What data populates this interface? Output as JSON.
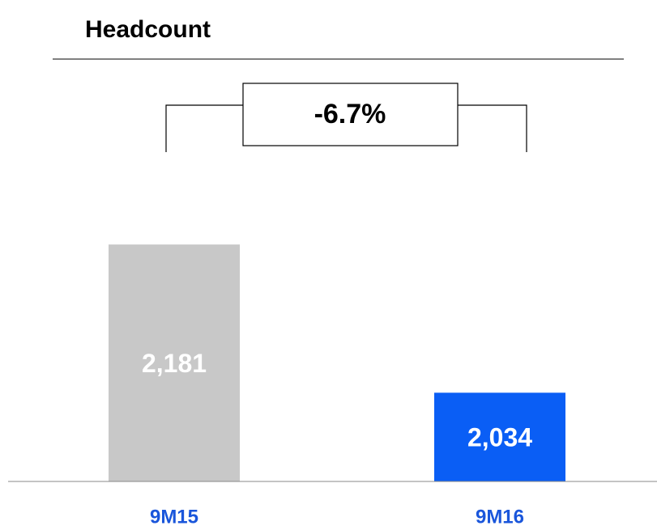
{
  "chart_data": {
    "type": "bar",
    "title": "Headcount",
    "categories": [
      "9M15",
      "9M16"
    ],
    "values": [
      2181,
      2034
    ],
    "value_labels": [
      "2,181",
      "2,034"
    ],
    "colors": [
      "#c8c8c8",
      "#0a5ef5"
    ],
    "ylim": [
      1946,
      2263
    ],
    "annotation": "-6.7%"
  }
}
